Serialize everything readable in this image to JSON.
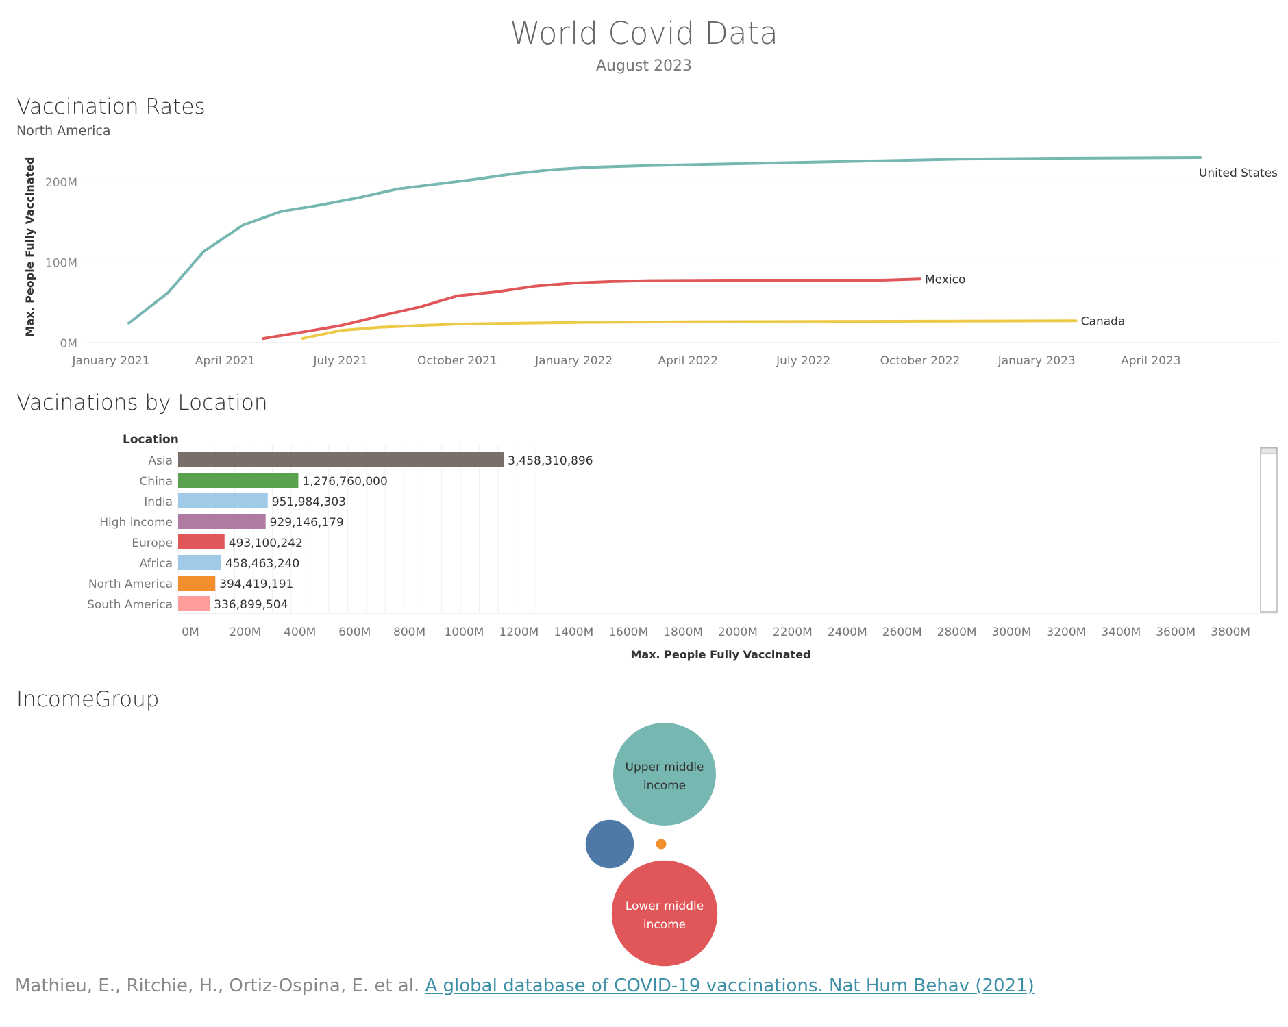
{
  "dashboard": {
    "title": "World Covid Data",
    "subtitle": "August 2023"
  },
  "line_section": {
    "title": "Vaccination Rates",
    "subtitle": "North America"
  },
  "bar_section": {
    "title": "Vacinations by Location"
  },
  "bubble_section": {
    "title": "IncomeGroup"
  },
  "citation": {
    "authors": "Mathieu, E., Ritchie, H., Ortiz-Ospina, E. et al.",
    "link_text": "A global database of COVID-19 vaccinations. Nat Hum Behav (2021)"
  },
  "chart_data": [
    {
      "type": "line",
      "title": "Vaccination Rates",
      "subtitle": "North America",
      "ylabel": "Max. People Fully Vaccinated",
      "ylim": [
        0,
        230000000
      ],
      "yticks": [
        {
          "value": 0,
          "label": "0M"
        },
        {
          "value": 100000000,
          "label": "100M"
        },
        {
          "value": 200000000,
          "label": "200M"
        }
      ],
      "xticks": [
        {
          "date": "2021-01-01",
          "label": "January 2021"
        },
        {
          "date": "2021-04-01",
          "label": "April 2021"
        },
        {
          "date": "2021-07-01",
          "label": "July 2021"
        },
        {
          "date": "2021-10-01",
          "label": "October 2021"
        },
        {
          "date": "2022-01-01",
          "label": "January 2022"
        },
        {
          "date": "2022-04-01",
          "label": "April 2022"
        },
        {
          "date": "2022-07-01",
          "label": "July 2022"
        },
        {
          "date": "2022-10-01",
          "label": "October 2022"
        },
        {
          "date": "2023-01-01",
          "label": "January 2023"
        },
        {
          "date": "2023-04-01",
          "label": "April 2023"
        }
      ],
      "grid": true,
      "series": [
        {
          "name": "United States",
          "color": "#76b7b2",
          "points": [
            [
              "2021-01-15",
              24000000
            ],
            [
              "2021-02-15",
              62000000
            ],
            [
              "2021-03-15",
              113000000
            ],
            [
              "2021-04-15",
              146000000
            ],
            [
              "2021-05-15",
              163000000
            ],
            [
              "2021-06-15",
              171000000
            ],
            [
              "2021-07-15",
              180000000
            ],
            [
              "2021-08-15",
              191000000
            ],
            [
              "2021-09-15",
              197000000
            ],
            [
              "2021-10-15",
              203000000
            ],
            [
              "2021-11-15",
              210000000
            ],
            [
              "2021-12-15",
              215000000
            ],
            [
              "2022-01-15",
              218000000
            ],
            [
              "2022-03-01",
              220000000
            ],
            [
              "2022-05-01",
              222000000
            ],
            [
              "2022-07-01",
              224000000
            ],
            [
              "2022-09-01",
              226000000
            ],
            [
              "2022-11-01",
              228000000
            ],
            [
              "2023-01-01",
              229000000
            ],
            [
              "2023-05-10",
              230000000
            ]
          ]
        },
        {
          "name": "Mexico",
          "color": "#e15759",
          "points": [
            [
              "2021-05-01",
              5000000
            ],
            [
              "2021-06-01",
              13000000
            ],
            [
              "2021-07-01",
              21000000
            ],
            [
              "2021-08-01",
              33000000
            ],
            [
              "2021-09-01",
              44000000
            ],
            [
              "2021-10-01",
              58000000
            ],
            [
              "2021-11-01",
              63000000
            ],
            [
              "2021-12-01",
              70000000
            ],
            [
              "2022-01-01",
              74000000
            ],
            [
              "2022-02-01",
              76000000
            ],
            [
              "2022-03-01",
              77000000
            ],
            [
              "2022-05-01",
              77500000
            ],
            [
              "2022-09-01",
              77500000
            ],
            [
              "2022-10-01",
              79000000
            ]
          ]
        },
        {
          "name": "Canada",
          "color": "#edc948",
          "points": [
            [
              "2021-06-01",
              5000000
            ],
            [
              "2021-07-01",
              15000000
            ],
            [
              "2021-08-01",
              19000000
            ],
            [
              "2021-09-01",
              21000000
            ],
            [
              "2021-10-01",
              23000000
            ],
            [
              "2022-01-01",
              25000000
            ],
            [
              "2022-04-01",
              25800000
            ],
            [
              "2022-10-01",
              26500000
            ],
            [
              "2023-02-01",
              27000000
            ]
          ]
        }
      ]
    },
    {
      "type": "bar",
      "orientation": "horizontal",
      "title": "Vacinations by Location",
      "category_header": "Location",
      "xlabel": "Max. People Fully Vaccinated",
      "xlim": [
        0,
        4000000000
      ],
      "xticks": [
        "0M",
        "200M",
        "400M",
        "600M",
        "800M",
        "1000M",
        "1200M",
        "1400M",
        "1600M",
        "1800M",
        "2000M",
        "2200M",
        "2400M",
        "2600M",
        "2800M",
        "3000M",
        "3200M",
        "3400M",
        "3600M",
        "3800M"
      ],
      "grid": true,
      "bars": [
        {
          "category": "Asia",
          "value": 3458310896,
          "label": "3,458,310,896",
          "color": "#7a6e6b"
        },
        {
          "category": "China",
          "value": 1276760000,
          "label": "1,276,760,000",
          "color": "#59a14f"
        },
        {
          "category": "India",
          "value": 951984303,
          "label": "951,984,303",
          "color": "#a0cbe8"
        },
        {
          "category": "High income",
          "value": 929146179,
          "label": "929,146,179",
          "color": "#b07aa1"
        },
        {
          "category": "Europe",
          "value": 493100242,
          "label": "493,100,242",
          "color": "#e15759"
        },
        {
          "category": "Africa",
          "value": 458463240,
          "label": "458,463,240",
          "color": "#a0cbe8"
        },
        {
          "category": "North America",
          "value": 394419191,
          "label": "394,419,191",
          "color": "#f28e2b"
        },
        {
          "category": "South America",
          "value": 336899504,
          "label": "336,899,504",
          "color": "#ff9d9a"
        }
      ]
    },
    {
      "type": "bubble",
      "title": "IncomeGroup",
      "bubbles": [
        {
          "label": "Upper middle income",
          "relative_size": 1.0,
          "color": "#76b7b2",
          "text_color": "#333333"
        },
        {
          "label": "",
          "relative_size": 0.47,
          "color": "#4e79a7",
          "text_color": "#ffffff"
        },
        {
          "label": "",
          "relative_size": 0.1,
          "color": "#f28e2b",
          "text_color": "#ffffff"
        },
        {
          "label": "Lower middle income",
          "relative_size": 1.03,
          "color": "#e15759",
          "text_color": "#ffffff"
        }
      ]
    }
  ]
}
